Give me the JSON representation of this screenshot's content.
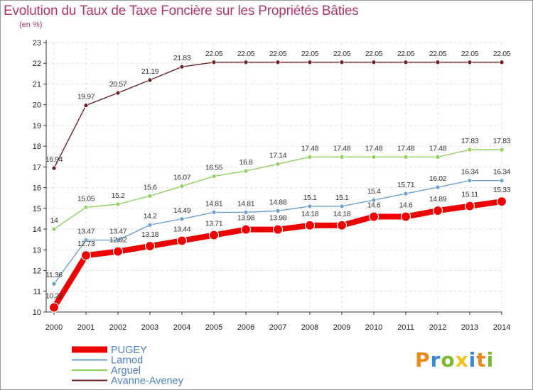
{
  "title": "Evolution du Taux de Taxe Foncière sur les Propriétés Bâties",
  "subtitle": "(en %)",
  "logo": {
    "letters": [
      "P",
      "r",
      "o",
      "x",
      "i",
      "t",
      "i"
    ],
    "colors": [
      "#e8891b",
      "#3a89cf",
      "#7ab82e",
      "#f2c21b",
      "#3a89cf",
      "#e8891b",
      "#7ab82e"
    ]
  },
  "chart_data": {
    "type": "line",
    "title": "Evolution du Taux de Taxe Foncière sur les Propriétés Bâties",
    "ylabel": "(en %)",
    "xlabel": "",
    "x": [
      "2000",
      "2001",
      "2002",
      "2003",
      "2004",
      "2005",
      "2006",
      "2007",
      "2008",
      "2009",
      "2010",
      "2011",
      "2012",
      "2013",
      "2014"
    ],
    "ylim": [
      10,
      23
    ],
    "yticks": [
      "10",
      "11",
      "12",
      "13",
      "14",
      "15",
      "16",
      "17",
      "18",
      "19",
      "20",
      "21",
      "22",
      "23"
    ],
    "grid": true,
    "legend_position": "bottom-left",
    "series": [
      {
        "name": "Avanne-Aveney",
        "color": "#6b1f24",
        "values": [
          16.94,
          19.97,
          20.57,
          21.19,
          21.83,
          22.05,
          22.05,
          22.05,
          22.05,
          22.05,
          22.05,
          22.05,
          22.05,
          22.05,
          22.05
        ],
        "labels": [
          "16.94",
          "19.97",
          "20.57",
          "21.19",
          "21.83",
          "22.05",
          "22.05",
          "22.05",
          "22.05",
          "22.05",
          "22.05",
          "22.05",
          "22.05",
          "22.05",
          "22.05"
        ]
      },
      {
        "name": "Arguel",
        "color": "#8ed15e",
        "values": [
          14,
          15.05,
          15.2,
          15.6,
          16.07,
          16.55,
          16.8,
          17.14,
          17.48,
          17.48,
          17.48,
          17.48,
          17.48,
          17.83,
          17.83
        ],
        "labels": [
          "14",
          "15.05",
          "15.2",
          "15.6",
          "16.07",
          "16.55",
          "16.8",
          "17.14",
          "17.48",
          "17.48",
          "17.48",
          "17.48",
          "17.48",
          "17.83",
          "17.83"
        ]
      },
      {
        "name": "Larnod",
        "color": "#6b9fcf",
        "values": [
          11.36,
          13.47,
          13.47,
          14.2,
          14.49,
          14.81,
          14.81,
          14.88,
          15.1,
          15.1,
          15.4,
          15.71,
          16.02,
          16.34,
          16.34
        ],
        "labels": [
          "11.36",
          "13.47",
          "13.47",
          "14.2",
          "14.49",
          "14.81",
          "14.81",
          "14.88",
          "15.1",
          "15.1",
          "15.4",
          "15.71",
          "16.02",
          "16.34",
          "16.34"
        ]
      },
      {
        "name": "PUGEY",
        "color": "#ee0000",
        "values": [
          10.22,
          12.73,
          12.92,
          13.18,
          13.44,
          13.71,
          13.98,
          13.98,
          14.18,
          14.18,
          14.6,
          14.6,
          14.89,
          15.11,
          15.33
        ],
        "labels": [
          "10.22",
          "12.73",
          "12.92",
          "13.18",
          "13.44",
          "13.71",
          "13.98",
          "13.98",
          "14.18",
          "14.18",
          "14.6",
          "14.6",
          "14.89",
          "15.11",
          "15.33"
        ]
      }
    ],
    "legend": [
      "PUGEY",
      "Larnod",
      "Arguel",
      "Avanne-Aveney"
    ]
  }
}
